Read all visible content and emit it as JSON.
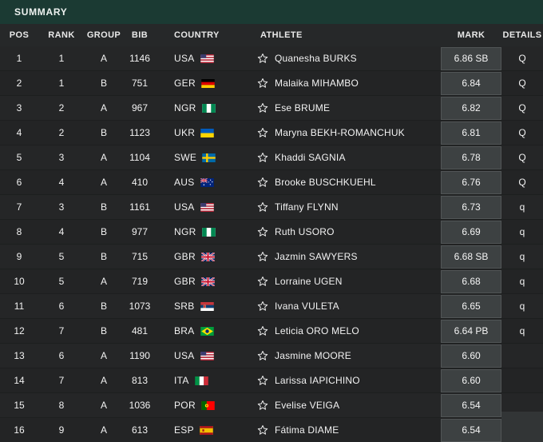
{
  "title_bar": {
    "label": "SUMMARY"
  },
  "table": {
    "columns": [
      "POS",
      "RANK",
      "GROUP",
      "BIB",
      "COUNTRY",
      "ATHLETE",
      "MARK",
      "DETAILS"
    ],
    "rows": [
      {
        "pos": "1",
        "rank": "1",
        "group": "A",
        "bib": "1146",
        "country": "USA",
        "athlete": "Quanesha BURKS",
        "mark": "6.86 SB",
        "details": "Q"
      },
      {
        "pos": "2",
        "rank": "1",
        "group": "B",
        "bib": "751",
        "country": "GER",
        "athlete": "Malaika MIHAMBO",
        "mark": "6.84",
        "details": "Q"
      },
      {
        "pos": "3",
        "rank": "2",
        "group": "A",
        "bib": "967",
        "country": "NGR",
        "athlete": "Ese BRUME",
        "mark": "6.82",
        "details": "Q"
      },
      {
        "pos": "4",
        "rank": "2",
        "group": "B",
        "bib": "1123",
        "country": "UKR",
        "athlete": "Maryna BEKH-ROMANCHUK",
        "mark": "6.81",
        "details": "Q"
      },
      {
        "pos": "5",
        "rank": "3",
        "group": "A",
        "bib": "1104",
        "country": "SWE",
        "athlete": "Khaddi SAGNIA",
        "mark": "6.78",
        "details": "Q"
      },
      {
        "pos": "6",
        "rank": "4",
        "group": "A",
        "bib": "410",
        "country": "AUS",
        "athlete": "Brooke BUSCHKUEHL",
        "mark": "6.76",
        "details": "Q"
      },
      {
        "pos": "7",
        "rank": "3",
        "group": "B",
        "bib": "1161",
        "country": "USA",
        "athlete": "Tiffany FLYNN",
        "mark": "6.73",
        "details": "q"
      },
      {
        "pos": "8",
        "rank": "4",
        "group": "B",
        "bib": "977",
        "country": "NGR",
        "athlete": "Ruth USORO",
        "mark": "6.69",
        "details": "q"
      },
      {
        "pos": "9",
        "rank": "5",
        "group": "B",
        "bib": "715",
        "country": "GBR",
        "athlete": "Jazmin SAWYERS",
        "mark": "6.68 SB",
        "details": "q"
      },
      {
        "pos": "10",
        "rank": "5",
        "group": "A",
        "bib": "719",
        "country": "GBR",
        "athlete": "Lorraine UGEN",
        "mark": "6.68",
        "details": "q"
      },
      {
        "pos": "11",
        "rank": "6",
        "group": "B",
        "bib": "1073",
        "country": "SRB",
        "athlete": "Ivana VULETA",
        "mark": "6.65",
        "details": "q"
      },
      {
        "pos": "12",
        "rank": "7",
        "group": "B",
        "bib": "481",
        "country": "BRA",
        "athlete": "Leticia ORO MELO",
        "mark": "6.64 PB",
        "details": "q"
      },
      {
        "pos": "13",
        "rank": "6",
        "group": "A",
        "bib": "1190",
        "country": "USA",
        "athlete": "Jasmine MOORE",
        "mark": "6.60",
        "details": ""
      },
      {
        "pos": "14",
        "rank": "7",
        "group": "A",
        "bib": "813",
        "country": "ITA",
        "athlete": "Larissa IAPICHINO",
        "mark": "6.60",
        "details": ""
      },
      {
        "pos": "15",
        "rank": "8",
        "group": "A",
        "bib": "1036",
        "country": "POR",
        "athlete": "Evelise VEIGA",
        "mark": "6.54",
        "details": ""
      },
      {
        "pos": "16",
        "rank": "9",
        "group": "A",
        "bib": "613",
        "country": "ESP",
        "athlete": "Fátima DIAME",
        "mark": "6.54",
        "details": ""
      }
    ]
  },
  "icons": {
    "favorite": "star-outline-icon",
    "flags": [
      "USA",
      "GER",
      "NGR",
      "UKR",
      "SWE",
      "AUS",
      "GBR",
      "SRB",
      "BRA",
      "ITA",
      "POR",
      "ESP"
    ]
  },
  "colors": {
    "accent_teal": "#1b3a33",
    "header_bg": "#262829",
    "row_bg": "#242526",
    "mark_box_bg": "#3d4142",
    "mark_box_border": "#515556",
    "text": "#f2f2f2"
  }
}
